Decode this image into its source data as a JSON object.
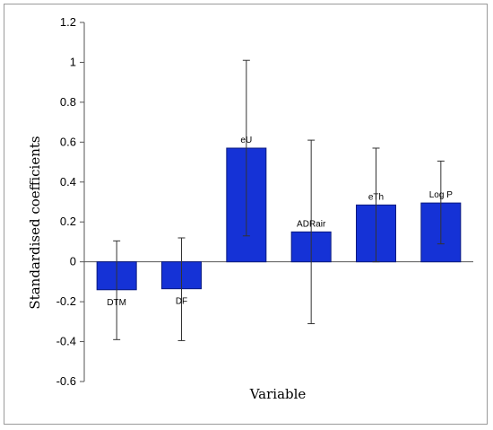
{
  "chart_data": {
    "type": "bar",
    "title": "",
    "xlabel": "Variable",
    "ylabel": "Standardised coefficients",
    "ylim": [
      -0.6,
      1.2
    ],
    "yticks": [
      1.2,
      1,
      0.8,
      0.6,
      0.4,
      0.2,
      0,
      -0.2,
      -0.4,
      -0.6
    ],
    "grid": false,
    "legend": "none",
    "categories": [
      "DTM",
      "DF",
      "eU",
      "ADRair",
      "eTh",
      "Log P"
    ],
    "values": [
      -0.14,
      -0.135,
      0.57,
      0.15,
      0.285,
      0.295
    ],
    "error_low": [
      -0.39,
      -0.395,
      0.13,
      -0.31,
      0.0,
      0.09
    ],
    "error_high": [
      0.105,
      0.12,
      1.01,
      0.61,
      0.57,
      0.505
    ],
    "colors": {
      "bar_fill": "#1532d6",
      "bar_stroke": "#0a1a80",
      "error": "#333333",
      "axis": "#555555"
    }
  }
}
